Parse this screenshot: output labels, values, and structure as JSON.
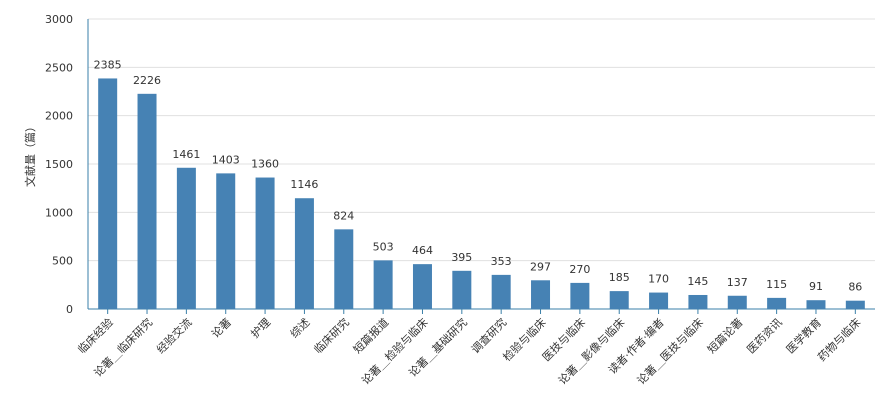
{
  "chart_data": {
    "type": "bar",
    "title": "",
    "xlabel": "",
    "ylabel": "文献量（篇）",
    "ylim": [
      0,
      3000
    ],
    "yticks": [
      0,
      500,
      1000,
      1500,
      2000,
      2500,
      3000
    ],
    "grid": true,
    "legend": "none",
    "bar_color": "#4682b4",
    "categories": [
      "临床经验",
      "论著＿临床研究",
      "经验交流",
      "论著",
      "护理",
      "综述",
      "临床研究",
      "短篇报道",
      "论著＿检验与临床",
      "论著＿基础研究",
      "调查研究",
      "检验与临床",
      "医技与临床",
      "论著＿影像与临床",
      "读者·作者·编者",
      "论著＿医技与临床",
      "短篇论著",
      "医药资讯",
      "医学教育",
      "药物与临床"
    ],
    "values": [
      2385,
      2226,
      1461,
      1403,
      1360,
      1146,
      824,
      503,
      464,
      395,
      353,
      297,
      270,
      185,
      170,
      145,
      137,
      115,
      91,
      86
    ]
  }
}
